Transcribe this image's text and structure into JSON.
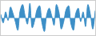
{
  "chart_data": {
    "type": "area",
    "x": [
      0,
      1,
      2,
      3,
      4,
      5,
      6,
      7,
      8,
      9,
      10,
      11,
      12,
      13,
      14,
      15,
      16,
      17,
      18,
      19,
      20,
      21,
      22,
      23,
      24,
      25,
      26,
      27,
      28,
      29,
      30,
      31,
      32,
      33,
      34,
      35,
      36,
      37,
      38,
      39
    ],
    "values": [
      0.3,
      -0.4,
      0.5,
      -0.2,
      0.9,
      0.4,
      -0.3,
      -1.0,
      0.6,
      1.1,
      0.2,
      -0.5,
      1.2,
      -0.8,
      -0.2,
      0.7,
      1.0,
      -0.4,
      -1.1,
      0.3,
      0.8,
      0.2,
      -0.6,
      1.1,
      0.5,
      -0.9,
      -0.3,
      0.7,
      1.0,
      -0.5,
      -1.0,
      0.4,
      0.8,
      -0.3,
      0.5,
      -0.7,
      1.1,
      0.3,
      -0.9,
      0.6
    ],
    "color": "#3d8fc7",
    "xlim": [
      0,
      39
    ],
    "ylim": [
      -1.4,
      1.4
    ],
    "tick_labels": false,
    "grid": false
  }
}
